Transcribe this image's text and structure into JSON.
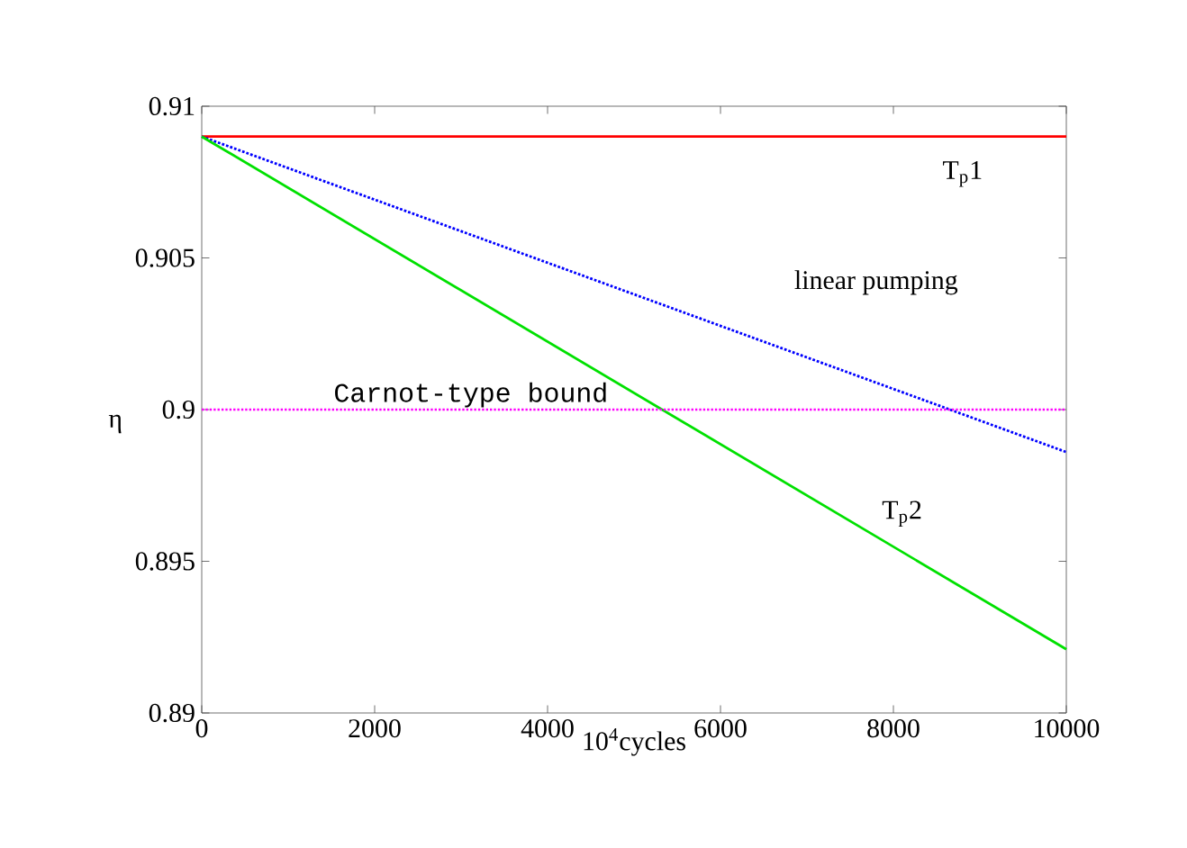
{
  "chart_data": {
    "type": "line",
    "xlabel": "10$^{4}$cycles",
    "ylabel": "η",
    "x": [
      0,
      10000
    ],
    "series": [
      {
        "name": "T$_{p}$1",
        "color": "#ff0000",
        "values": [
          0.909,
          0.909
        ],
        "line_style": "solid"
      },
      {
        "name": "linear pumping",
        "color": "#0000ff",
        "values": [
          0.909,
          0.8986
        ],
        "line_style": "dotted"
      },
      {
        "name": "T$_{p}$2",
        "color": "#00e000",
        "values": [
          0.909,
          0.8921
        ],
        "line_style": "solid"
      }
    ],
    "ref_lines": [
      {
        "axis": "y",
        "value": 0.9,
        "label": "Carnot-type bound",
        "color": "#ff00ff",
        "line_style": "dotted"
      }
    ],
    "xlim": [
      0,
      10000
    ],
    "ylim": [
      0.89,
      0.91
    ],
    "xticks": [
      0,
      2000,
      4000,
      6000,
      8000,
      10000
    ],
    "yticks": [
      0.89,
      0.895,
      0.9,
      0.905,
      0.91
    ],
    "grid": false,
    "marker": "none"
  }
}
